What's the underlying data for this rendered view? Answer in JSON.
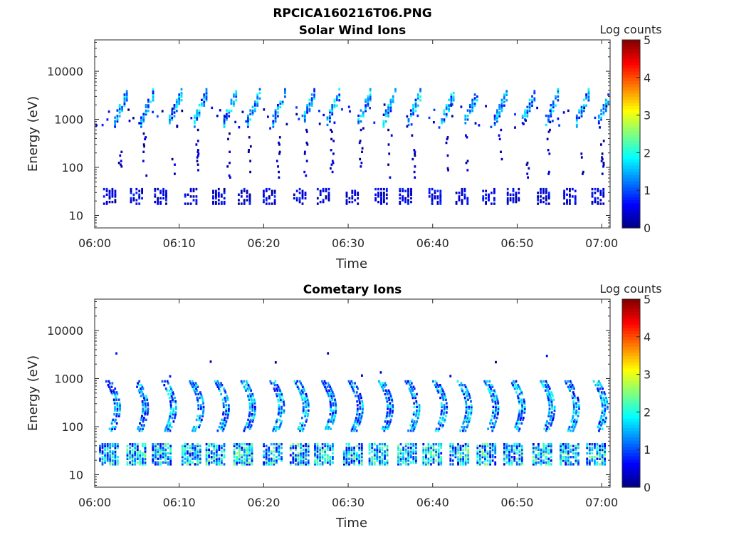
{
  "figure_title": "RPCICA160216T06.PNG",
  "colormap": [
    "#00007f",
    "#0000ff",
    "#007fff",
    "#00ffff",
    "#7fff7f",
    "#ffff00",
    "#ff7f00",
    "#ff0000",
    "#7f0000"
  ],
  "chart_data": [
    {
      "type": "heatmap",
      "title": "Solar Wind Ions",
      "xlabel": "Time",
      "ylabel": "Energy (eV)",
      "x_tick_labels": [
        "06:00",
        "06:10",
        "06:20",
        "06:30",
        "06:40",
        "06:50",
        "07:00"
      ],
      "x_tick_minutes": [
        0,
        10,
        20,
        30,
        40,
        50,
        60
      ],
      "xlim_minutes": [
        0,
        61
      ],
      "y_scale": "log",
      "y_tick_labels": [
        "10",
        "100",
        "1000",
        "10000"
      ],
      "y_tick_values": [
        10,
        100,
        1000,
        10000
      ],
      "ylim": [
        5.5,
        45000
      ],
      "colorbar": {
        "label": "Log counts",
        "ticks": [
          "0",
          "1",
          "2",
          "3",
          "4",
          "5"
        ],
        "range": [
          0,
          5
        ]
      },
      "sweep_start_minutes": [
        0.0,
        3.2,
        6.4,
        9.6,
        12.8,
        16.0,
        19.2,
        22.4,
        25.6,
        28.8,
        32.0,
        35.2,
        38.4,
        41.6,
        44.8,
        48.0,
        51.2,
        54.4,
        57.6
      ],
      "components": [
        {
          "name": "high-energy solar wind beam",
          "energy_range_eV": [
            600,
            3000
          ],
          "peak_log_counts": 2.0
        },
        {
          "name": "intermediate scatter",
          "energy_range_eV": [
            60,
            600
          ],
          "peak_log_counts": 0.5
        },
        {
          "name": "low-energy band",
          "energy_range_eV": [
            15,
            35
          ],
          "peak_log_counts": 0.7
        }
      ]
    },
    {
      "type": "heatmap",
      "title": "Cometary Ions",
      "xlabel": "Time",
      "ylabel": "Energy (eV)",
      "x_tick_labels": [
        "06:00",
        "06:10",
        "06:20",
        "06:30",
        "06:40",
        "06:50",
        "07:00"
      ],
      "x_tick_minutes": [
        0,
        10,
        20,
        30,
        40,
        50,
        60
      ],
      "xlim_minutes": [
        0,
        61
      ],
      "y_scale": "log",
      "y_tick_labels": [
        "10",
        "100",
        "1000",
        "10000"
      ],
      "y_tick_values": [
        10,
        100,
        1000,
        10000
      ],
      "ylim": [
        5.5,
        45000
      ],
      "colorbar": {
        "label": "Log counts",
        "ticks": [
          "0",
          "1",
          "2",
          "3",
          "4",
          "5"
        ],
        "range": [
          0,
          5
        ]
      },
      "sweep_start_minutes": [
        0.0,
        3.2,
        6.4,
        9.6,
        12.8,
        16.0,
        19.2,
        22.4,
        25.6,
        28.8,
        32.0,
        35.2,
        38.4,
        41.6,
        44.8,
        48.0,
        51.2,
        54.4,
        57.6
      ],
      "components": [
        {
          "name": "curved accelerated cometary ion arc",
          "energy_range_eV": [
            80,
            800
          ],
          "peak_log_counts": 2.0
        },
        {
          "name": "low-energy cometary band",
          "energy_range_eV": [
            15,
            40
          ],
          "peak_log_counts": 2.6
        }
      ]
    }
  ]
}
